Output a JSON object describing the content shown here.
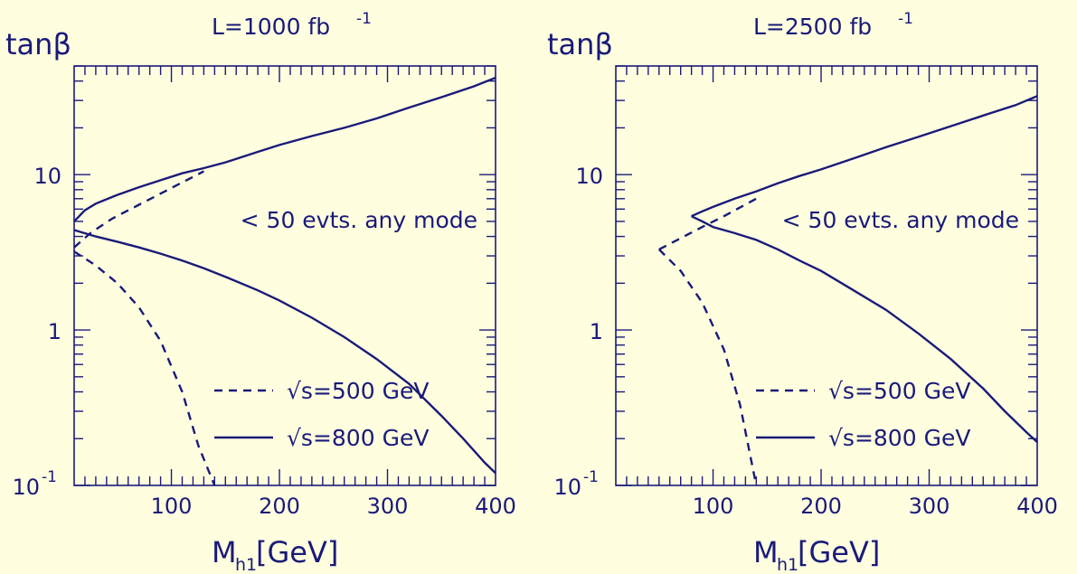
{
  "chart_data": [
    {
      "type": "line",
      "title": "L=1000 fb",
      "title_sup": "-1",
      "ylabel": "tanβ",
      "xlabel_main": "M",
      "xlabel_sub": "h1",
      "xlabel_unit": "[GeV]",
      "xlim": [
        10,
        400
      ],
      "ylim": [
        0.1,
        50
      ],
      "yscale": "log",
      "xticks": [
        "100",
        "200",
        "300",
        "400"
      ],
      "yticks": [
        {
          "label": "10",
          "sup": "-1"
        },
        {
          "label": "1",
          "sup": ""
        },
        {
          "label": "10",
          "sup": ""
        }
      ],
      "annotation": "< 50 evts. any mode",
      "legend": [
        {
          "label": "√s=500 GeV",
          "style": "dashed"
        },
        {
          "label": "√s=800 GeV",
          "style": "solid"
        }
      ],
      "series": [
        {
          "style": "solid",
          "x": [
            10,
            20,
            30,
            50,
            70,
            90,
            110,
            130,
            150,
            180,
            200,
            230,
            260,
            290,
            320,
            350,
            380,
            400
          ],
          "y": [
            5,
            5.9,
            6.5,
            7.4,
            8.3,
            9.2,
            10.2,
            11,
            12,
            14,
            15.5,
            17.7,
            20,
            23,
            27,
            31.5,
            37,
            42
          ]
        },
        {
          "style": "solid",
          "x": [
            10,
            30,
            50,
            70,
            90,
            110,
            130,
            150,
            180,
            200,
            230,
            260,
            290,
            320,
            350,
            370,
            390,
            400
          ],
          "y": [
            4.4,
            4.0,
            3.7,
            3.4,
            3.1,
            2.8,
            2.5,
            2.2,
            1.8,
            1.55,
            1.2,
            0.9,
            0.65,
            0.45,
            0.28,
            0.2,
            0.14,
            0.12
          ]
        },
        {
          "style": "dashed",
          "x": [
            10,
            25,
            45,
            70,
            100,
            130
          ],
          "y": [
            3.4,
            4.2,
            5.2,
            6.4,
            8.2,
            10.5
          ]
        },
        {
          "style": "dashed",
          "x": [
            10,
            30,
            50,
            70,
            90,
            110,
            125,
            140
          ],
          "y": [
            3.2,
            2.6,
            2.0,
            1.4,
            0.85,
            0.4,
            0.18,
            0.1
          ]
        }
      ]
    },
    {
      "type": "line",
      "title": "L=2500 fb",
      "title_sup": "-1",
      "ylabel": "tanβ",
      "xlabel_main": "M",
      "xlabel_sub": "h1",
      "xlabel_unit": "[GeV]",
      "xlim": [
        10,
        400
      ],
      "ylim": [
        0.1,
        50
      ],
      "yscale": "log",
      "xticks": [
        "100",
        "200",
        "300",
        "400"
      ],
      "yticks": [
        {
          "label": "10",
          "sup": "-1"
        },
        {
          "label": "1",
          "sup": ""
        },
        {
          "label": "10",
          "sup": ""
        }
      ],
      "annotation": "< 50 evts. any mode",
      "legend": [
        {
          "label": "√s=500 GeV",
          "style": "dashed"
        },
        {
          "label": "√s=800 GeV",
          "style": "solid"
        }
      ],
      "series": [
        {
          "style": "solid",
          "x": [
            80,
            90,
            100,
            120,
            140,
            160,
            180,
            200,
            230,
            260,
            290,
            320,
            350,
            380,
            400
          ],
          "y": [
            5.4,
            5.8,
            6.2,
            7.0,
            7.8,
            8.8,
            9.8,
            10.8,
            12.7,
            15,
            17.5,
            20.5,
            24,
            28,
            32
          ]
        },
        {
          "style": "solid",
          "x": [
            80,
            90,
            100,
            120,
            140,
            160,
            180,
            200,
            230,
            260,
            290,
            320,
            350,
            370,
            390,
            400
          ],
          "y": [
            5.4,
            5.0,
            4.6,
            4.2,
            3.8,
            3.3,
            2.8,
            2.4,
            1.8,
            1.35,
            0.95,
            0.65,
            0.42,
            0.3,
            0.22,
            0.19
          ]
        },
        {
          "style": "dashed",
          "x": [
            50,
            70,
            90,
            110,
            140
          ],
          "y": [
            3.3,
            3.9,
            4.6,
            5.4,
            7.0
          ]
        },
        {
          "style": "dashed",
          "x": [
            50,
            70,
            90,
            110,
            125,
            140
          ],
          "y": [
            3.3,
            2.4,
            1.5,
            0.75,
            0.33,
            0.1
          ]
        }
      ]
    }
  ]
}
